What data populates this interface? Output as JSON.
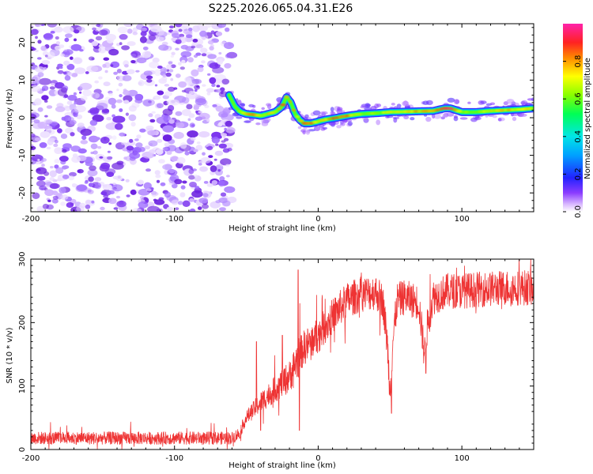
{
  "title": "S225.2026.065.04.31.E26",
  "chart_data": [
    {
      "type": "heatmap",
      "name": "spectrogram",
      "xlabel": "Height of straight line (km)",
      "ylabel": "Frequency (Hz)",
      "xlim": [
        -200,
        150
      ],
      "ylim": [
        -25,
        25
      ],
      "xticks": [
        -200,
        -100,
        0,
        100
      ],
      "xtick_labels": [
        "-200",
        "-100",
        "0",
        "100"
      ],
      "yticks": [
        -20,
        -10,
        0,
        10,
        20
      ],
      "ytick_labels": [
        "-20",
        "-10",
        "0",
        "10",
        "20"
      ],
      "noise_region_x": [
        -200,
        -60
      ],
      "ridge": {
        "x": [
          -62,
          -58,
          -54,
          -50,
          -45,
          -40,
          -35,
          -30,
          -25,
          -22,
          -19,
          -16,
          -13,
          -10,
          -5,
          0,
          5,
          10,
          20,
          30,
          40,
          50,
          60,
          70,
          80,
          88,
          92,
          96,
          100,
          110,
          120,
          130,
          140,
          150
        ],
        "y": [
          6,
          3,
          1.5,
          1,
          0.8,
          0.5,
          1,
          1.5,
          3,
          5.5,
          4,
          1,
          -0.5,
          -1.5,
          -1.5,
          -1,
          -0.5,
          -0.2,
          0.5,
          1,
          1.2,
          1.5,
          1.6,
          1.7,
          1.8,
          2.5,
          2.5,
          2,
          1.5,
          1.5,
          1.8,
          2,
          2.2,
          2.5
        ],
        "amplitude": [
          0.3,
          0.5,
          0.7,
          0.75,
          0.8,
          0.6,
          0.75,
          0.7,
          0.8,
          0.85,
          0.8,
          0.75,
          0.7,
          0.8,
          0.85,
          0.7,
          0.8,
          0.9,
          0.85,
          0.6,
          0.6,
          0.7,
          0.75,
          0.8,
          0.85,
          0.95,
          0.95,
          0.85,
          0.6,
          0.6,
          0.7,
          0.75,
          0.7,
          0.7
        ]
      },
      "colorbar": {
        "label": "Normalized spectral amplitude",
        "ticks": [
          0.0,
          0.2,
          0.4,
          0.6,
          0.8
        ],
        "tick_labels": [
          "0.0",
          "0.2",
          "0.4",
          "0.6",
          "0.8"
        ]
      }
    },
    {
      "type": "line",
      "name": "snr",
      "xlabel": "Height of straight line (km)",
      "ylabel": "SNR (10 * v/v)",
      "xlim": [
        -200,
        150
      ],
      "ylim": [
        0,
        300
      ],
      "xticks": [
        -200,
        -100,
        0,
        100
      ],
      "xtick_labels": [
        "-200",
        "-100",
        "0",
        "100"
      ],
      "yticks": [
        0,
        100,
        200,
        300
      ],
      "ytick_labels": [
        "0",
        "100",
        "200",
        "300"
      ],
      "color": "#ee3333",
      "envelope": {
        "x": [
          -200,
          -60,
          -55,
          -50,
          -40,
          -30,
          -20,
          -15,
          -10,
          0,
          10,
          20,
          30,
          40,
          45,
          48,
          50,
          52,
          55,
          60,
          70,
          72,
          74,
          76,
          80,
          90,
          100,
          110,
          120,
          130,
          140,
          150
        ],
        "y": [
          18,
          18,
          25,
          50,
          75,
          95,
          115,
          140,
          160,
          180,
          210,
          235,
          245,
          248,
          235,
          170,
          90,
          170,
          235,
          240,
          232,
          190,
          150,
          195,
          240,
          250,
          250,
          252,
          253,
          255,
          255,
          255
        ]
      },
      "spikes": [
        {
          "x": -14,
          "y": 283
        },
        {
          "x": -13,
          "y": 30
        },
        {
          "x": -43,
          "y": 170
        },
        {
          "x": -40,
          "y": 30
        },
        {
          "x": -25,
          "y": 180
        },
        {
          "x": 51,
          "y": 57
        },
        {
          "x": 75,
          "y": 120
        }
      ]
    }
  ],
  "colors": {
    "line": "#ee3333",
    "noise": "#8a3cf0",
    "background": "#ffffff"
  }
}
